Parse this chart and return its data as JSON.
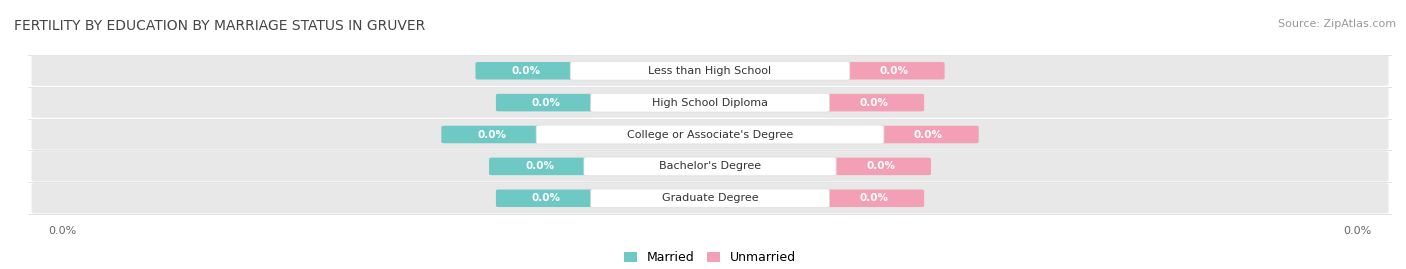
{
  "title": "FERTILITY BY EDUCATION BY MARRIAGE STATUS IN GRUVER",
  "source": "Source: ZipAtlas.com",
  "categories": [
    "Less than High School",
    "High School Diploma",
    "College or Associate's Degree",
    "Bachelor's Degree",
    "Graduate Degree"
  ],
  "married_values": [
    0.0,
    0.0,
    0.0,
    0.0,
    0.0
  ],
  "unmarried_values": [
    0.0,
    0.0,
    0.0,
    0.0,
    0.0
  ],
  "married_color": "#6ec8c4",
  "unmarried_color": "#f4a0b4",
  "row_bg_color": "#e8e8e8",
  "title_fontsize": 10,
  "source_fontsize": 8,
  "figsize": [
    14.06,
    2.69
  ],
  "dpi": 100
}
